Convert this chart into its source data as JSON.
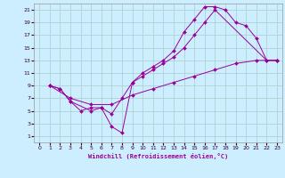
{
  "background_color": "#cceeff",
  "grid_color": "#aacccc",
  "line_color": "#990099",
  "xlabel": "Windchill (Refroidissement éolien,°C)",
  "xlim": [
    -0.5,
    23.5
  ],
  "ylim": [
    0,
    22
  ],
  "xticks": [
    0,
    1,
    2,
    3,
    4,
    5,
    6,
    7,
    8,
    9,
    10,
    11,
    12,
    13,
    14,
    15,
    16,
    17,
    18,
    19,
    20,
    21,
    22,
    23
  ],
  "yticks": [
    1,
    3,
    5,
    7,
    9,
    11,
    13,
    15,
    17,
    19,
    21
  ],
  "line1_x": [
    1,
    2,
    3,
    4,
    5,
    6,
    7,
    8,
    9,
    10,
    11,
    12,
    13,
    14,
    15,
    16,
    17,
    18,
    19,
    20,
    21,
    22,
    23
  ],
  "line1_y": [
    9,
    8.5,
    6.5,
    5,
    5.5,
    5.5,
    2.5,
    1.5,
    9.5,
    11,
    12,
    13,
    14.5,
    17.5,
    19.5,
    21.5,
    21.5,
    21,
    19,
    18.5,
    16.5,
    13,
    13
  ],
  "line2_x": [
    1,
    2,
    3,
    5,
    6,
    7,
    8,
    9,
    10,
    11,
    12,
    13,
    14,
    15,
    16,
    17,
    22,
    23
  ],
  "line2_y": [
    9,
    8.5,
    6.5,
    5,
    5.5,
    4.5,
    7,
    9.5,
    10.5,
    11.5,
    12.5,
    13.5,
    15,
    17,
    19,
    21,
    13,
    13
  ],
  "line3_x": [
    1,
    3,
    5,
    7,
    9,
    11,
    13,
    15,
    17,
    19,
    21,
    23
  ],
  "line3_y": [
    9,
    7,
    6,
    6,
    7.5,
    8.5,
    9.5,
    10.5,
    11.5,
    12.5,
    13,
    13
  ]
}
